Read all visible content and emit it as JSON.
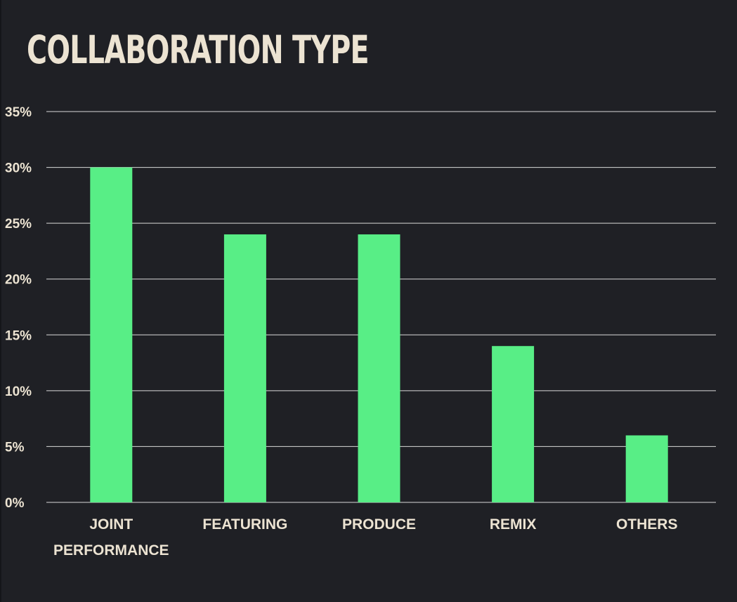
{
  "colors": {
    "background": "#1f2025",
    "title": "#ece3d2",
    "text": "#ece3d2",
    "bar": "#58ee86",
    "grid": "#d9d9d9"
  },
  "chart_data": {
    "type": "bar",
    "title": "COLLABORATION TYPE",
    "categories": [
      "JOINT PERFORMANCE",
      "FEATURING",
      "PRODUCE",
      "REMIX",
      "OTHERS"
    ],
    "category_lines": [
      [
        "JOINT",
        "PERFORMANCE"
      ],
      [
        "FEATURING"
      ],
      [
        "PRODUCE"
      ],
      [
        "REMIX"
      ],
      [
        "OTHERS"
      ]
    ],
    "values": [
      30,
      24,
      24,
      14,
      6
    ],
    "value_format": "percent",
    "xlabel": "",
    "ylabel": "",
    "ylim": [
      0,
      35
    ],
    "yticks": [
      0,
      5,
      10,
      15,
      20,
      25,
      30,
      35
    ],
    "ytick_labels": [
      "0%",
      "5%",
      "10%",
      "15%",
      "20%",
      "25%",
      "30%",
      "35%"
    ],
    "grid": true,
    "legend": "none"
  }
}
